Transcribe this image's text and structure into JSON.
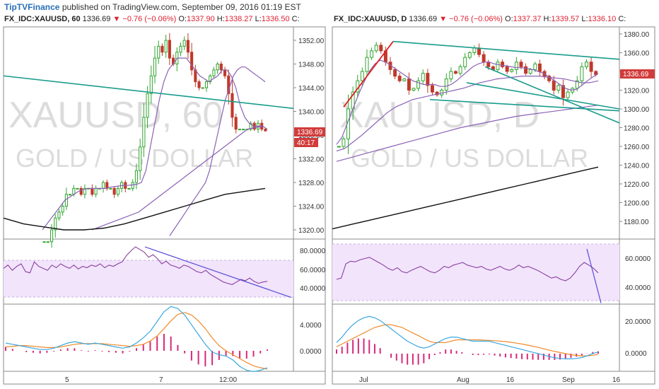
{
  "header": {
    "brand": "TipTVFinance",
    "published": "published on TradingView.com, September 09, 2016 01:19 EST"
  },
  "colors": {
    "up": "#2fa52f",
    "down": "#c0392b",
    "trendline_teal": "#1a9c8c",
    "trendline_red": "#e02020",
    "ma_purple": "#8a62b6",
    "ma_black": "#111111",
    "rsi_line": "#8a3f9e",
    "rsi_band": "#f1e4fb",
    "rsi_trend": "#5a4dd6",
    "macd_blue": "#3aa7e0",
    "macd_orange": "#f08a2c",
    "hist": "#d6297a",
    "price_tag": "#d23b3b"
  },
  "left": {
    "info": {
      "symbol": "FX_IDC:XAUUSD, 60",
      "last": "1336.69",
      "change": "−0.76 (−0.06%)",
      "o_label": "O:",
      "o": "1337.90",
      "h_label": "H:",
      "h": "1338.27",
      "l_label": "L:",
      "l": "1336.50",
      "c_label": "C:"
    },
    "watermark1": "XAUUSD, 60",
    "watermark2": "GOLD / US DOLLAR",
    "price_tag": "1336.69",
    "countdown": "40:17",
    "x_labels": [
      "5",
      "7",
      "12:00"
    ],
    "rsi_labels": [
      "80.0000",
      "60.0000",
      "40.0000"
    ],
    "macd_labels": [
      "4.0000",
      "0.0000"
    ]
  },
  "right": {
    "info": {
      "symbol": "FX_IDC:XAUUSD, D",
      "last": "1336.69",
      "change": "−0.76 (−0.06%)",
      "o_label": "O:",
      "o": "1337.37",
      "h_label": "H:",
      "h": "1339.57",
      "l_label": "L:",
      "l": "1336.10",
      "c_label": "C:"
    },
    "watermark1": "XAUUSD, D",
    "watermark2": "GOLD / US DOLLAR",
    "price_tag": "1336.69",
    "x_labels": [
      "Jul",
      "Aug",
      "16",
      "Sep",
      "16"
    ],
    "rsi_labels": [
      "60.0000",
      "40.0000"
    ],
    "macd_labels": [
      "20.0000",
      "0.0000"
    ]
  },
  "chart_data": [
    {
      "type": "candlestick",
      "title": "FX_IDC:XAUUSD, 60",
      "timeframe": "60",
      "x_tick_labels": [
        "5",
        "7",
        "12:00"
      ],
      "y_tick_labels": [
        "1352.00",
        "1348.00",
        "1344.00",
        "1340.00",
        "1336.00",
        "1332.00",
        "1328.00",
        "1324.00",
        "1320.00"
      ],
      "ylim": [
        1318,
        1354
      ],
      "ohlc_anchor": {
        "open": 1337.9,
        "high": 1338.27,
        "low": 1336.5,
        "last": 1336.69
      },
      "close_path": [
        1318,
        1318,
        1320,
        1322,
        1323,
        1324,
        1326,
        1326,
        1327,
        1327,
        1326,
        1327,
        1327,
        1326,
        1327,
        1327,
        1328,
        1327,
        1327,
        1326,
        1327,
        1328,
        1327,
        1327,
        1328,
        1330,
        1334,
        1339,
        1343,
        1346,
        1349,
        1351,
        1350,
        1352,
        1349,
        1348,
        1350,
        1351,
        1352,
        1350,
        1347,
        1345,
        1344,
        1344,
        1345,
        1346,
        1347,
        1348,
        1347,
        1346,
        1343,
        1339,
        1337,
        1337,
        1337,
        1337,
        1338,
        1337,
        1338,
        1337,
        1336.7
      ],
      "ma_fast": [
        1320,
        1321,
        1322,
        1323,
        1324,
        1325,
        1325.5,
        1326,
        1326.5,
        1326.8,
        1327,
        1327,
        1327,
        1327,
        1327,
        1327.2,
        1327.3,
        1327.4,
        1327.5,
        1327.5,
        1327.6,
        1327.7,
        1328,
        1330,
        1334,
        1338,
        1342,
        1345,
        1347,
        1348,
        1349,
        1349,
        1349,
        1348,
        1347,
        1346,
        1345.5,
        1345,
        1345.5,
        1346,
        1347,
        1347,
        1346,
        1344,
        1341,
        1339,
        1338,
        1337.5,
        1337.5,
        1337.5,
        1337
      ],
      "ma_mid": [
        1319,
        1320,
        1321,
        1322,
        1323,
        1324,
        1325,
        1326,
        1327,
        1328,
        1330,
        1333,
        1336,
        1339,
        1342,
        1344,
        1346,
        1347,
        1347.5,
        1347.5,
        1347,
        1346.5,
        1346,
        1345.5,
        1345
      ],
      "ma_slow": [
        1320,
        1321,
        1322,
        1323,
        1325,
        1327,
        1329,
        1331,
        1333,
        1335,
        1337,
        1337.5
      ],
      "ma_long": [
        1322,
        1321,
        1320.5,
        1320,
        1320,
        1320.3,
        1321,
        1322,
        1323,
        1324,
        1325,
        1326,
        1326.5,
        1327
      ],
      "trendline": {
        "from": 1346,
        "to": 1340.5
      },
      "rsi": {
        "labels": [
          "80.0000",
          "60.0000",
          "40.0000"
        ],
        "band": [
          30,
          70
        ],
        "values": [
          55,
          60,
          52,
          58,
          62,
          50,
          48,
          65,
          58,
          55,
          52,
          60,
          56,
          62,
          58,
          55,
          60,
          54,
          58,
          56,
          60,
          58,
          62,
          56,
          60,
          58,
          62,
          65,
          75,
          82,
          88,
          84,
          80,
          72,
          76,
          70,
          62,
          66,
          60,
          58,
          55,
          60,
          58,
          54,
          50,
          48,
          52,
          46,
          42,
          38,
          34,
          32,
          30,
          34,
          38,
          36,
          40,
          35,
          32,
          34,
          35
        ],
        "trendline": {
          "from": 88,
          "to": 32
        }
      },
      "macd": {
        "labels": [
          "4.0000",
          "0.0000"
        ],
        "macd": [
          1.2,
          1.0,
          0.8,
          0.6,
          0.4,
          0.2,
          0.2,
          0.4,
          0.8,
          1.2,
          1.4,
          1.2,
          1.0,
          1.2,
          1.0,
          0.8,
          0.6,
          0.4,
          0.6,
          1.2,
          2.0,
          3.0,
          4.5,
          6.0,
          6.8,
          6.5,
          5.5,
          4.0,
          2.5,
          1.0,
          -0.2,
          -0.6,
          -0.8,
          -1.4,
          -2.4,
          -3.0,
          -3.2,
          -3.0,
          -2.6
        ],
        "signal": [
          0.6,
          0.7,
          0.8,
          0.8,
          0.7,
          0.6,
          0.5,
          0.5,
          0.6,
          0.8,
          1.0,
          1.1,
          1.1,
          1.1,
          1.1,
          1.0,
          0.9,
          0.8,
          0.7,
          0.8,
          1.0,
          1.5,
          2.3,
          3.4,
          4.6,
          5.6,
          5.9,
          5.5,
          4.6,
          3.4,
          2.0,
          0.8,
          0.0,
          -0.6,
          -1.2,
          -1.8,
          -2.3,
          -2.6,
          -2.8
        ]
      }
    },
    {
      "type": "candlestick",
      "title": "FX_IDC:XAUUSD, D",
      "timeframe": "D",
      "x_tick_labels": [
        "Jul",
        "Aug",
        "16",
        "Sep",
        "16"
      ],
      "y_tick_labels": [
        "1380.00",
        "1360.00",
        "1340.00",
        "1320.00",
        "1300.00",
        "1280.00",
        "1260.00",
        "1240.00",
        "1220.00",
        "1200.00",
        "1180.00"
      ],
      "ylim": [
        1168,
        1386
      ],
      "ohlc_anchor": {
        "open": 1337.37,
        "high": 1339.57,
        "low": 1336.1,
        "last": 1336.69
      },
      "close_path": [
        1260,
        1268,
        1300,
        1318,
        1330,
        1340,
        1355,
        1362,
        1368,
        1362,
        1350,
        1342,
        1335,
        1330,
        1332,
        1320,
        1322,
        1330,
        1338,
        1325,
        1318,
        1315,
        1320,
        1332,
        1340,
        1338,
        1345,
        1355,
        1360,
        1365,
        1358,
        1350,
        1345,
        1342,
        1350,
        1345,
        1340,
        1342,
        1350,
        1345,
        1338,
        1342,
        1348,
        1340,
        1335,
        1330,
        1320,
        1325,
        1312,
        1318,
        1322,
        1330,
        1345,
        1350,
        1340,
        1336.7
      ],
      "ma_fast": [
        1262,
        1270,
        1285,
        1300,
        1315,
        1328,
        1340,
        1348,
        1352,
        1350,
        1346,
        1342,
        1338,
        1334,
        1330,
        1328,
        1326,
        1326,
        1326,
        1324,
        1324,
        1326,
        1330,
        1335,
        1340,
        1345,
        1348,
        1350,
        1350,
        1348,
        1347,
        1346,
        1345,
        1344,
        1344,
        1343,
        1342,
        1340,
        1338,
        1334,
        1330,
        1326,
        1322,
        1320,
        1321,
        1325,
        1330,
        1334,
        1338
      ],
      "ma_mid": [
        1255,
        1258,
        1265,
        1272,
        1280,
        1288,
        1296,
        1302,
        1306,
        1310,
        1312,
        1314,
        1316,
        1318,
        1320,
        1322,
        1325,
        1328,
        1330,
        1332,
        1333,
        1334,
        1335,
        1335,
        1335,
        1334,
        1333,
        1332,
        1330,
        1328,
        1328,
        1330
      ],
      "ma_slow": [
        1244,
        1248,
        1252,
        1256,
        1260,
        1264,
        1268,
        1272,
        1276,
        1280,
        1283,
        1286,
        1289,
        1292,
        1294,
        1296,
        1298,
        1300,
        1302,
        1304
      ],
      "ma_long": [
        1172,
        1178,
        1184,
        1190,
        1196,
        1202,
        1208,
        1214,
        1220,
        1226,
        1232,
        1238
      ],
      "trendlines": {
        "red": {
          "from": 1302,
          "to": 1372
        },
        "teal_upper": {
          "from": 1372,
          "to": 1353
        },
        "teal_lower": {
          "from": 1310,
          "to": 1298
        },
        "teal_channel_top": {
          "from": 1345,
          "to": 1285
        },
        "teal_channel_bottom": {
          "from": 1328,
          "to": 1300
        }
      },
      "rsi": {
        "labels": [
          "60.0000",
          "40.0000"
        ],
        "band": [
          30,
          70
        ],
        "values": [
          38,
          40,
          62,
          66,
          65,
          68,
          70,
          72,
          68,
          64,
          60,
          55,
          52,
          56,
          50,
          48,
          52,
          55,
          58,
          54,
          50,
          48,
          52,
          58,
          56,
          60,
          62,
          64,
          60,
          58,
          56,
          58,
          54,
          52,
          55,
          58,
          54,
          52,
          55,
          60,
          56,
          58,
          55,
          52,
          48,
          44,
          40,
          42,
          38,
          36,
          40,
          48,
          58,
          64,
          60,
          55,
          48
        ],
        "trendline": {
          "from": 74,
          "to": 18
        }
      },
      "macd": {
        "labels": [
          "20.0000",
          "0.0000"
        ],
        "macd": [
          8,
          12,
          17,
          21,
          24,
          26,
          27,
          26,
          24,
          21,
          18,
          15,
          12,
          9,
          7,
          5,
          4,
          5,
          7,
          9,
          11,
          12,
          12,
          11,
          10,
          9,
          9,
          9,
          9,
          8,
          7,
          6,
          5,
          4,
          3,
          2,
          1,
          0,
          -1,
          -2,
          -3,
          -3.5,
          -3.8,
          -3.8,
          -3.5,
          -2.8,
          -1.5,
          0,
          1.2
        ],
        "signal": [
          5,
          7,
          9,
          11,
          13,
          15,
          17,
          19,
          20,
          21,
          21,
          20,
          19,
          17,
          15,
          13,
          11,
          9,
          8,
          8,
          8,
          9,
          10,
          10,
          10,
          10,
          10,
          9.8,
          9.6,
          9.4,
          9.1,
          8.7,
          8.2,
          7.6,
          7.0,
          6.2,
          5.4,
          4.5,
          3.5,
          2.5,
          1.6,
          0.8,
          0,
          -0.8,
          -1.3,
          -1.6,
          -1.6,
          -1.2,
          -0.5
        ]
      }
    }
  ]
}
